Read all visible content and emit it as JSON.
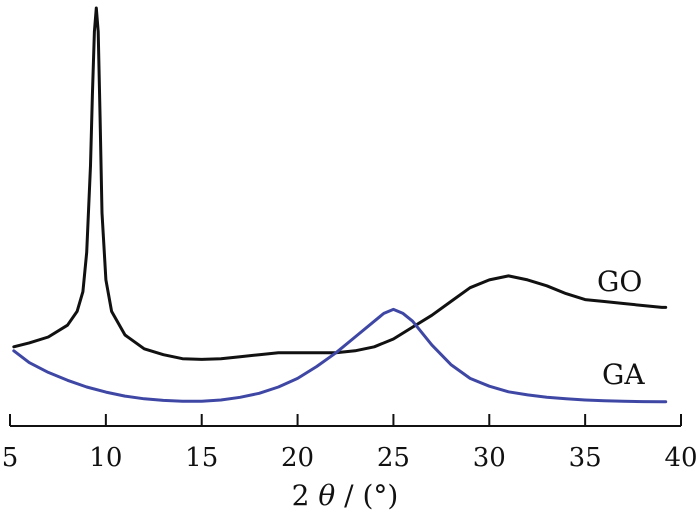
{
  "chart_data": {
    "type": "line",
    "title": "",
    "xlabel_prefix": "2",
    "xlabel_symbol": "θ",
    "xlabel_suffix": " / (°)",
    "ylabel": "",
    "xlim": [
      5,
      40
    ],
    "x_ticks": [
      5,
      10,
      15,
      20,
      25,
      30,
      35,
      40
    ],
    "x_tick_labels": [
      "5",
      "10",
      "15",
      "20",
      "25",
      "30",
      "35",
      "40"
    ],
    "y_axis_visible": false,
    "grid": false,
    "series": [
      {
        "name": "GO",
        "color": "#111111",
        "x": [
          5.2,
          6,
          7,
          8,
          8.5,
          8.8,
          9.0,
          9.2,
          9.3,
          9.4,
          9.5,
          9.6,
          9.7,
          9.8,
          10.0,
          10.3,
          11,
          12,
          13,
          14,
          15,
          16,
          17,
          18,
          19,
          20,
          21,
          22,
          23,
          24,
          25,
          26,
          27,
          28,
          29,
          30,
          31,
          32,
          33,
          34,
          35,
          36,
          37,
          38,
          39,
          39.2
        ],
        "y": [
          14,
          15,
          16.5,
          19.5,
          23,
          28,
          38,
          60,
          78,
          94,
          100,
          94,
          72,
          48,
          31,
          23,
          17,
          13.5,
          12,
          11,
          10.8,
          11,
          11.5,
          12,
          12.5,
          12.5,
          12.5,
          12.5,
          13,
          14,
          16,
          19,
          22,
          25.5,
          29,
          31,
          32,
          31,
          29.5,
          27.5,
          26,
          25.5,
          25,
          24.5,
          24,
          24
        ]
      },
      {
        "name": "GA",
        "color": "#3f47a5",
        "x": [
          5.2,
          6,
          7,
          8,
          9,
          10,
          11,
          12,
          13,
          14,
          15,
          16,
          17,
          18,
          19,
          20,
          21,
          22,
          23,
          24,
          24.5,
          25,
          25.5,
          26,
          26.5,
          27,
          28,
          29,
          30,
          31,
          32,
          33,
          34,
          35,
          36,
          37,
          38,
          39,
          39.2
        ],
        "y": [
          13,
          10,
          7.5,
          5.5,
          3.8,
          2.5,
          1.5,
          0.8,
          0.4,
          0.2,
          0.2,
          0.5,
          1.2,
          2.2,
          3.8,
          6.0,
          9.0,
          12.5,
          16.5,
          20.5,
          22.5,
          23.5,
          22.5,
          20.5,
          17.5,
          14.5,
          9.5,
          6.0,
          4.0,
          2.6,
          1.8,
          1.2,
          0.8,
          0.5,
          0.3,
          0.2,
          0.1,
          0.05,
          0.05
        ]
      }
    ]
  }
}
